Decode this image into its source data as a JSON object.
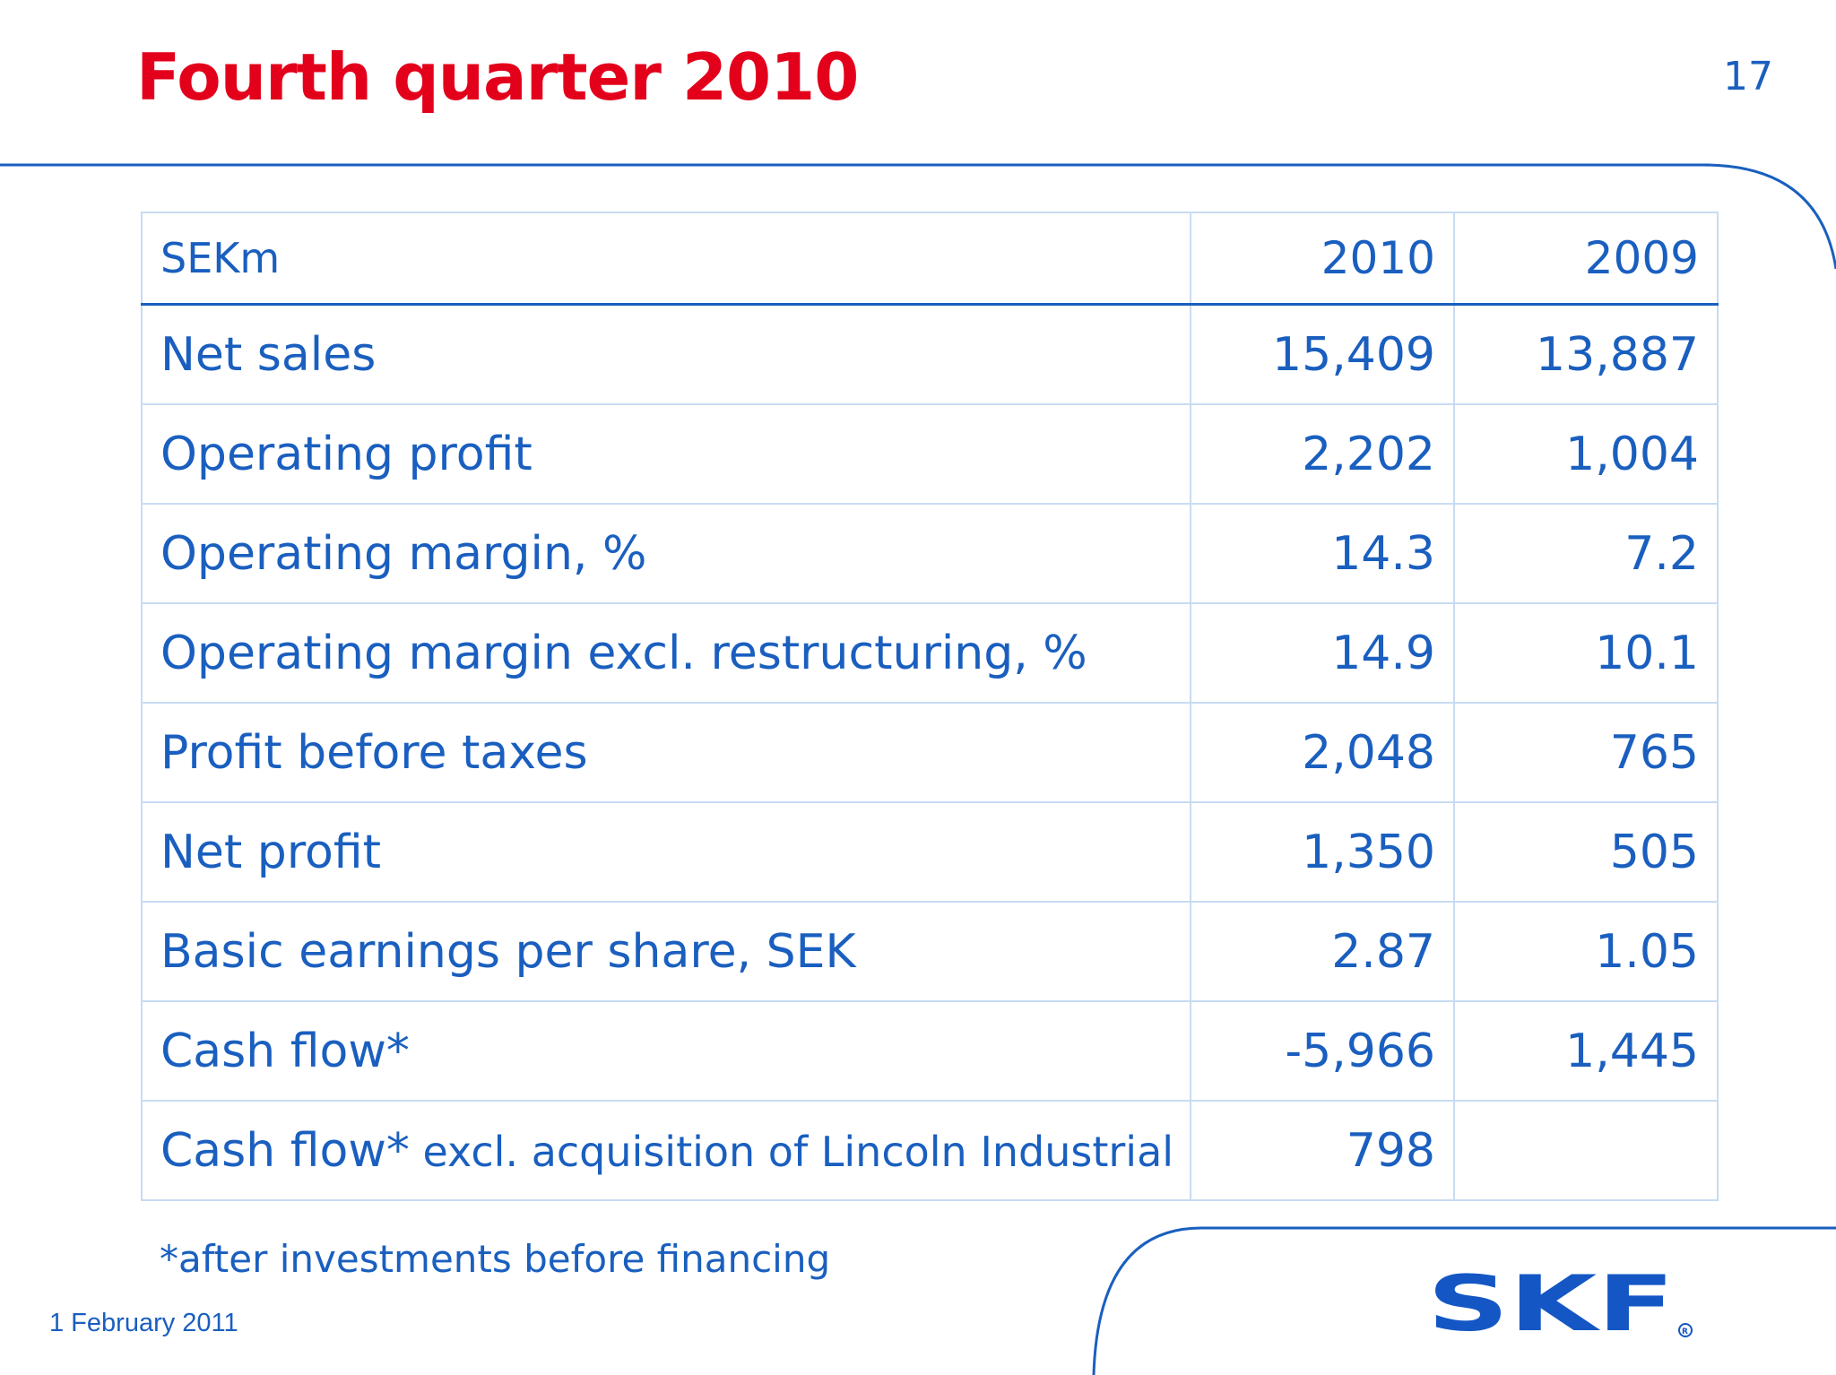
{
  "slide": {
    "title": "Fourth quarter 2010",
    "page_number": "17",
    "date": "1 February 2011",
    "footnote": "*after investments before financing",
    "accent_color": "#e3001b",
    "text_color": "#1a5fbf",
    "logo_text": "SKF"
  },
  "table": {
    "header": {
      "label": "SEKm",
      "col1": "2010",
      "col2": "2009"
    },
    "rows": [
      {
        "label": "Net sales",
        "v2010": "15,409",
        "v2009": "13,887"
      },
      {
        "label": "Operating profit",
        "v2010": "2,202",
        "v2009": "1,004"
      },
      {
        "label": "Operating margin, %",
        "v2010": "14.3",
        "v2009": "7.2"
      },
      {
        "label": "Operating margin excl. restructuring, %",
        "v2010": "14.9",
        "v2009": "10.1"
      },
      {
        "label": "Profit before taxes",
        "v2010": "2,048",
        "v2009": "765"
      },
      {
        "label": "Net profit",
        "v2010": "1,350",
        "v2009": "505"
      },
      {
        "label": "Basic earnings per share, SEK",
        "v2010": "2.87",
        "v2009": "1.05"
      },
      {
        "label": "Cash flow*",
        "v2010": "-5,966",
        "v2009": "1,445"
      },
      {
        "label": "Cash flow*",
        "label_suffix": " excl. acquisition of Lincoln Industrial",
        "v2010": "798",
        "v2009": ""
      }
    ]
  }
}
